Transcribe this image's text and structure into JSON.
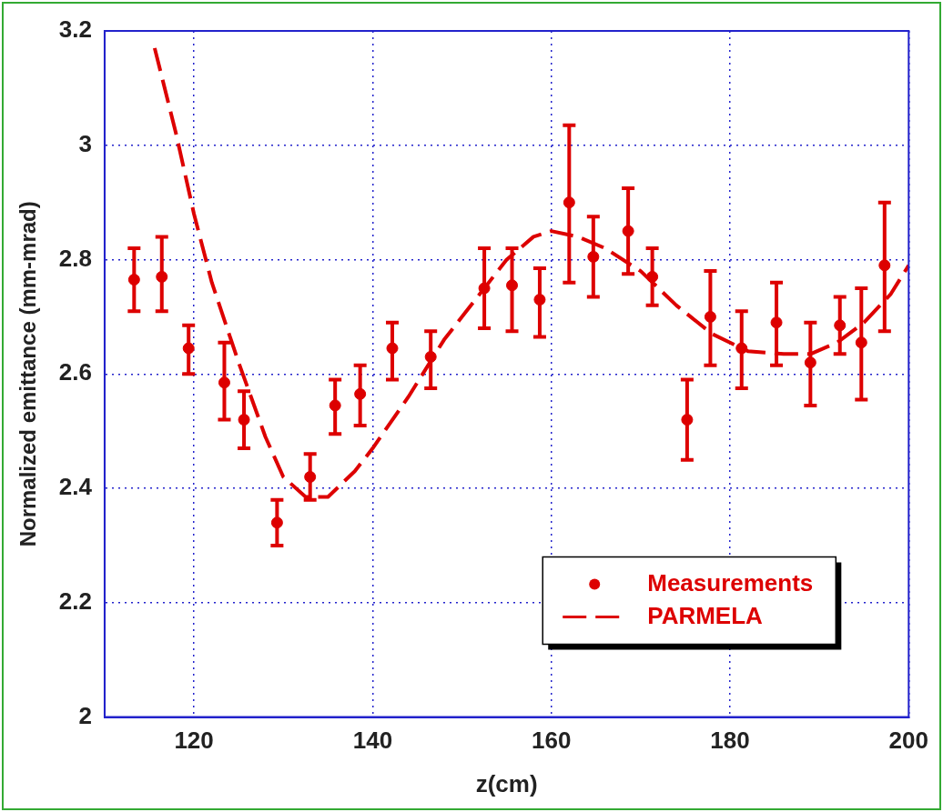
{
  "chart_data": {
    "type": "scatter",
    "xlabel": "z(cm)",
    "ylabel": "Normalized emittance (mm-mrad)",
    "xlim": [
      110,
      200
    ],
    "xticks": [
      120,
      140,
      160,
      180,
      200
    ],
    "ylim": [
      2,
      3.2
    ],
    "yticks": [
      2,
      2.2,
      2.4,
      2.6,
      2.8,
      3,
      3.2
    ],
    "grid": true,
    "legend": "bottom right",
    "series": [
      {
        "name": "Measurements",
        "type": "scatter",
        "color": "#dd0000",
        "marker": "circle",
        "x": [
          113.3,
          116.4,
          119.4,
          123.4,
          125.6,
          129.3,
          133,
          135.8,
          138.6,
          142.2,
          146.5,
          152.5,
          155.6,
          158.7,
          162,
          164.7,
          168.6,
          171.3,
          175.2,
          177.8,
          181.3,
          185.2,
          189,
          192.3,
          194.7,
          197.3
        ],
        "values": [
          2.765,
          2.77,
          2.645,
          2.585,
          2.52,
          2.34,
          2.42,
          2.545,
          2.565,
          2.645,
          2.63,
          2.75,
          2.755,
          2.73,
          2.9,
          2.805,
          2.85,
          2.77,
          2.52,
          2.7,
          2.645,
          2.69,
          2.62,
          2.685,
          2.655,
          2.79
        ],
        "errors": [
          [
            2.71,
            2.82
          ],
          [
            2.71,
            2.84
          ],
          [
            2.6,
            2.685
          ],
          [
            2.52,
            2.655
          ],
          [
            2.47,
            2.57
          ],
          [
            2.3,
            2.38
          ],
          [
            2.38,
            2.46
          ],
          [
            2.495,
            2.59
          ],
          [
            2.51,
            2.615
          ],
          [
            2.59,
            2.69
          ],
          [
            2.575,
            2.675
          ],
          [
            2.68,
            2.82
          ],
          [
            2.675,
            2.82
          ],
          [
            2.665,
            2.785
          ],
          [
            2.76,
            3.035
          ],
          [
            2.735,
            2.875
          ],
          [
            2.775,
            2.925
          ],
          [
            2.72,
            2.82
          ],
          [
            2.45,
            2.59
          ],
          [
            2.615,
            2.78
          ],
          [
            2.575,
            2.71
          ],
          [
            2.615,
            2.76
          ],
          [
            2.545,
            2.69
          ],
          [
            2.635,
            2.735
          ],
          [
            2.555,
            2.75
          ],
          [
            2.675,
            2.9
          ]
        ]
      },
      {
        "name": "PARMELA",
        "type": "line",
        "color": "#dd0000",
        "marker": "none",
        "line_style": "dashed",
        "x": [
          115.6,
          118,
          120,
          122,
          125,
          128,
          130,
          132.5,
          135,
          138,
          140,
          144,
          148,
          152,
          155,
          158,
          160,
          163,
          166,
          170,
          174,
          178,
          182,
          186,
          189,
          192,
          195,
          198,
          200
        ],
        "values": [
          3.17,
          3.02,
          2.88,
          2.76,
          2.62,
          2.49,
          2.42,
          2.385,
          2.385,
          2.43,
          2.47,
          2.56,
          2.66,
          2.74,
          2.8,
          2.84,
          2.85,
          2.84,
          2.82,
          2.78,
          2.72,
          2.67,
          2.64,
          2.635,
          2.635,
          2.655,
          2.69,
          2.74,
          2.79
        ]
      }
    ]
  }
}
